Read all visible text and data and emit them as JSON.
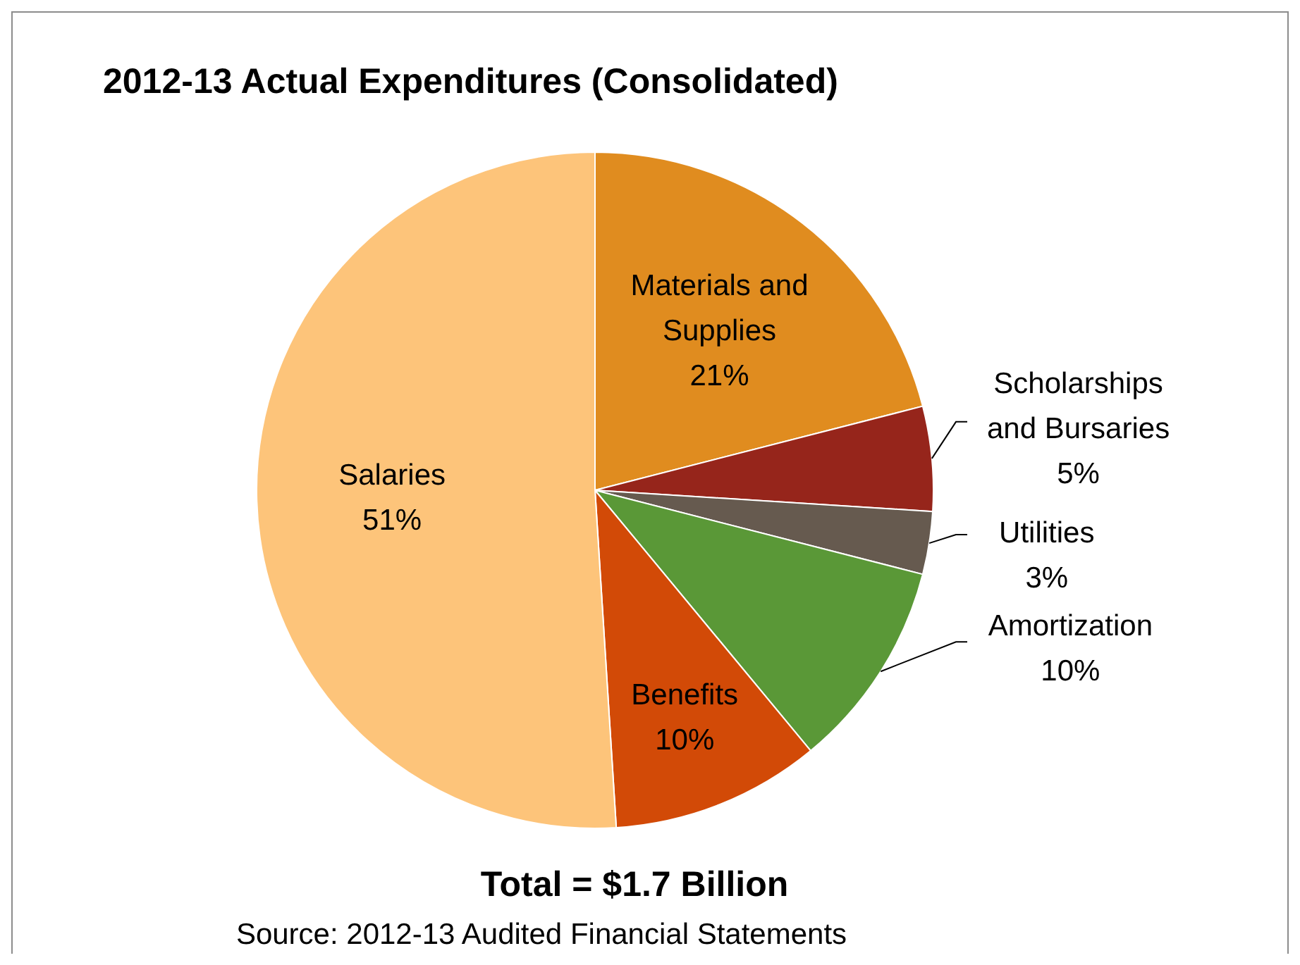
{
  "chart_data": {
    "type": "pie",
    "title": "2012-13 Actual Expenditures (Consolidated)",
    "categories": [
      "Materials and Supplies",
      "Scholarships and Bursaries",
      "Utilities",
      "Amortization",
      "Benefits",
      "Salaries"
    ],
    "values": [
      21,
      5,
      3,
      10,
      10,
      51
    ],
    "colors": [
      "#e08c1f",
      "#96251b",
      "#665a4f",
      "#5a9837",
      "#d24a07",
      "#fdc47a"
    ],
    "value_labels": [
      "21%",
      "5%",
      "3%",
      "10%",
      "10%",
      "51%"
    ],
    "annotations": [
      "Total = $1.7 Billion",
      "Source: 2012-13 Audited Financial Statements"
    ]
  }
}
